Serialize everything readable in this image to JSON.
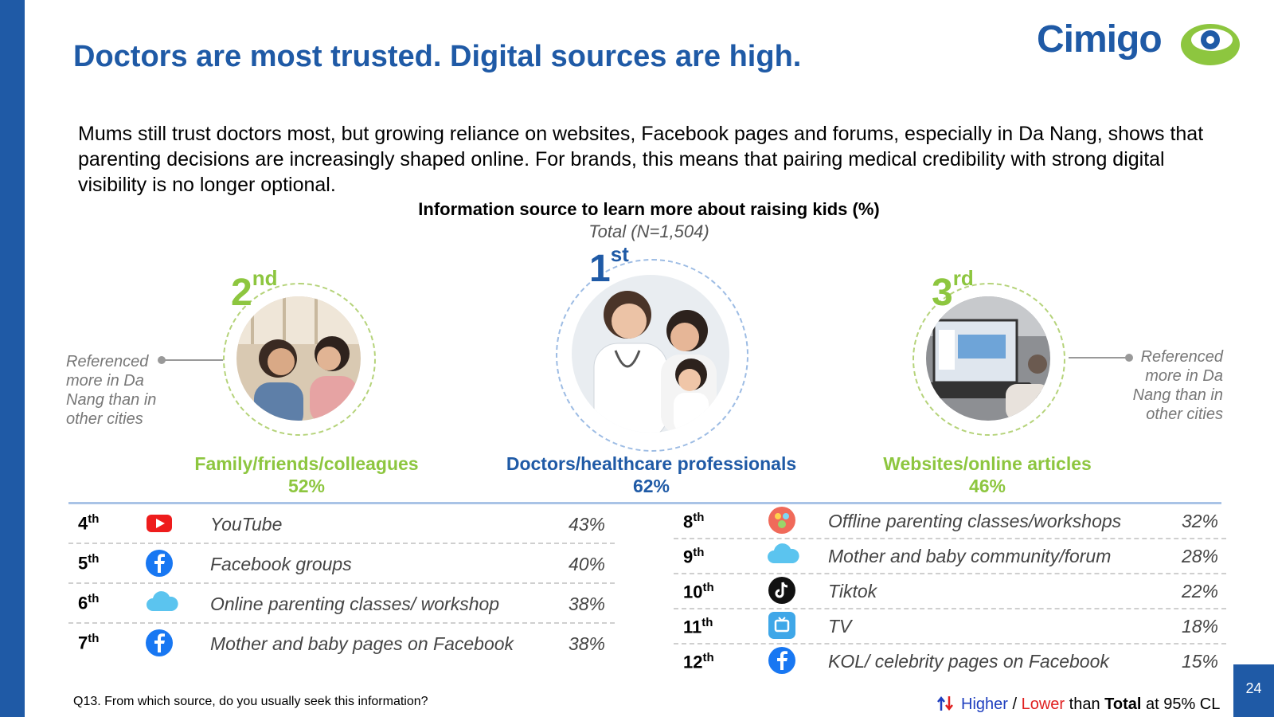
{
  "header": {
    "title": "Doctors are most trusted. Digital sources are high.",
    "logo_text": "Cimigo"
  },
  "intro": "Mums still trust doctors most, but growing reliance on websites, Facebook pages and forums, especially in Da Nang, shows that parenting decisions are increasingly shaped online. For brands, this means that pairing medical credibility with strong digital visibility is no longer optional.",
  "chart": {
    "title": "Information source to learn more about raising kids (%)",
    "subtitle": "Total (N=1,504)"
  },
  "top3": [
    {
      "rank": "2",
      "suffix": "nd",
      "label": "Family/friends/colleagues",
      "value": "52%",
      "note": "Referenced more in Da Nang than in other cities",
      "color": "#8dc63f"
    },
    {
      "rank": "1",
      "suffix": "st",
      "label": "Doctors/healthcare professionals",
      "value": "62%",
      "color": "#1f5aa6"
    },
    {
      "rank": "3",
      "suffix": "rd",
      "label": "Websites/online articles",
      "value": "46%",
      "note": "Referenced more in Da Nang than in other cities",
      "color": "#8dc63f"
    }
  ],
  "left_list": [
    {
      "rank": "4",
      "suffix": "th",
      "icon": "youtube-icon",
      "label": "YouTube",
      "value": "43%"
    },
    {
      "rank": "5",
      "suffix": "th",
      "icon": "facebook-icon",
      "label": "Facebook groups",
      "value": "40%"
    },
    {
      "rank": "6",
      "suffix": "th",
      "icon": "cloud-icon",
      "label": "Online parenting classes/ workshop",
      "value": "38%"
    },
    {
      "rank": "7",
      "suffix": "th",
      "icon": "facebook-icon",
      "label": "Mother and baby pages on Facebook",
      "value": "38%"
    }
  ],
  "right_list": [
    {
      "rank": "8",
      "suffix": "th",
      "icon": "workshop-icon",
      "label": "Offline parenting classes/workshops",
      "value": "32%"
    },
    {
      "rank": "9",
      "suffix": "th",
      "icon": "cloud-icon",
      "label": "Mother and baby community/forum",
      "value": "28%"
    },
    {
      "rank": "10",
      "suffix": "th",
      "icon": "tiktok-icon",
      "label": "Tiktok",
      "value": "22%"
    },
    {
      "rank": "11",
      "suffix": "th",
      "icon": "tv-icon",
      "label": "TV",
      "value": "18%"
    },
    {
      "rank": "12",
      "suffix": "th",
      "icon": "facebook-icon",
      "label": "KOL/ celebrity pages on Facebook",
      "value": "15%"
    }
  ],
  "footer": {
    "question": "Q13. From which source, do you usually seek this information?",
    "legend_higher": "Higher",
    "legend_sep": " / ",
    "legend_lower": "Lower",
    "legend_than": " than ",
    "legend_total": "Total",
    "legend_tail": " at 95% CL",
    "page_number": "24"
  },
  "colors": {
    "brand_blue": "#1f5aa6",
    "accent_green": "#8dc63f",
    "higher": "#1f3fbf",
    "lower": "#e02020"
  }
}
